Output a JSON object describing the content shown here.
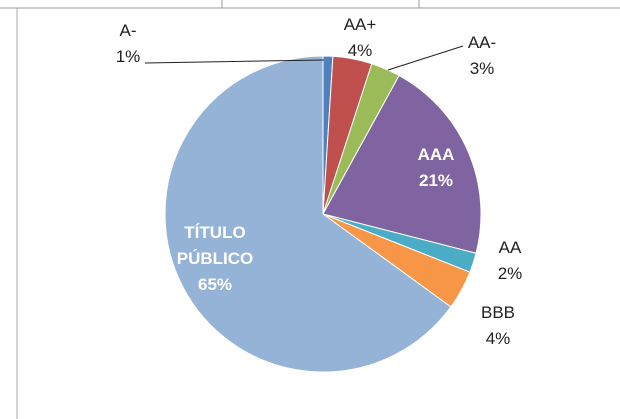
{
  "chart_data": {
    "type": "pie",
    "categories": [
      "A-",
      "AA+",
      "AA-",
      "AAA",
      "AA",
      "BBB",
      "TÍTULO PÚBLICO"
    ],
    "values": [
      1,
      4,
      3,
      21,
      2,
      4,
      65
    ],
    "value_labels": [
      "1%",
      "4%",
      "3%",
      "21%",
      "2%",
      "4%",
      "65%"
    ],
    "colors": [
      "#4f81bd",
      "#c0504d",
      "#9bbb59",
      "#8064a2",
      "#4bacc6",
      "#f79646",
      "#95b3d7"
    ]
  }
}
